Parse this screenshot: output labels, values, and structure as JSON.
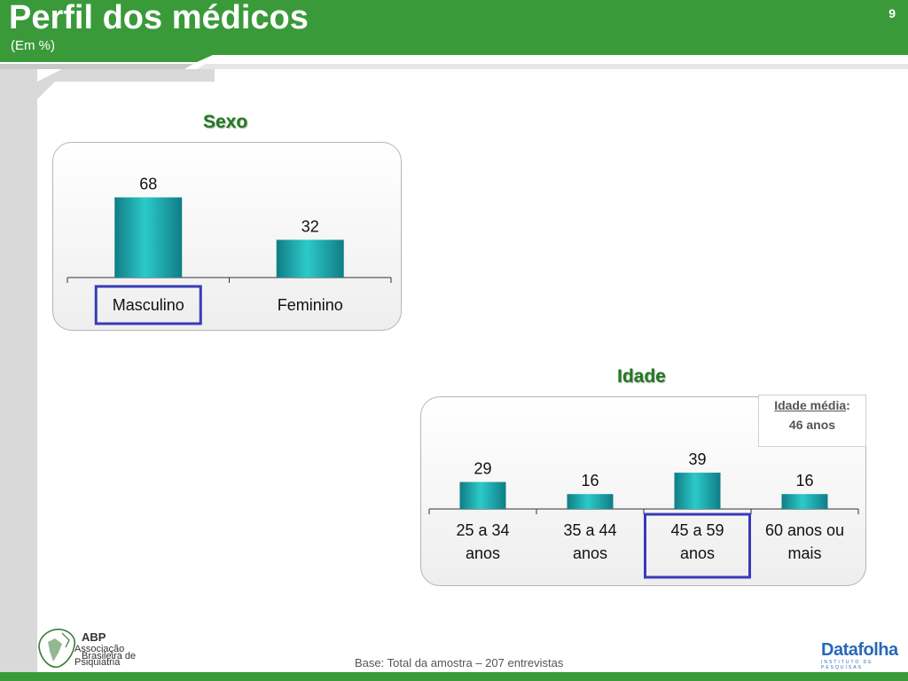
{
  "header": {
    "title": "Perfil dos médicos",
    "subtitle": "(Em %)",
    "page_number": "9"
  },
  "colors": {
    "green": "#3a9a3a",
    "title_green": "#1f7a1f",
    "bar_teal": "#21c1c1",
    "highlight": "#3a3ab8"
  },
  "chart_data": [
    {
      "type": "bar",
      "title": "Sexo",
      "categories": [
        "Masculino",
        "Feminino"
      ],
      "values": [
        68,
        32
      ],
      "value_labels": [
        "68",
        "32"
      ],
      "highlighted": "Masculino"
    },
    {
      "type": "bar",
      "title": "Idade",
      "categories": [
        "25 a 34 anos",
        "35 a 44 anos",
        "45 a 59 anos",
        "60 anos ou mais"
      ],
      "category_lines": [
        [
          "25 a 34",
          "anos"
        ],
        [
          "35 a 44",
          "anos"
        ],
        [
          "45 a 59",
          "anos"
        ],
        [
          "60 anos ou",
          "mais"
        ]
      ],
      "values": [
        29,
        16,
        39,
        16
      ],
      "value_labels": [
        "29",
        "16",
        "39",
        "16"
      ],
      "highlighted": "45 a 59 anos"
    }
  ],
  "info_box": {
    "label": "Idade média",
    "colon": ":",
    "value": "46 anos"
  },
  "footer": {
    "base": "Base: Total da amostra – 207 entrevistas",
    "abp_logo": {
      "abbr": "ABP",
      "line1": "Associação",
      "line2": "Brasileira de",
      "line3": "Psiquiatria"
    },
    "datafolha_logo": {
      "word": "Datafolha",
      "tagline": "INSTITUTO DE PESQUISAS"
    }
  }
}
